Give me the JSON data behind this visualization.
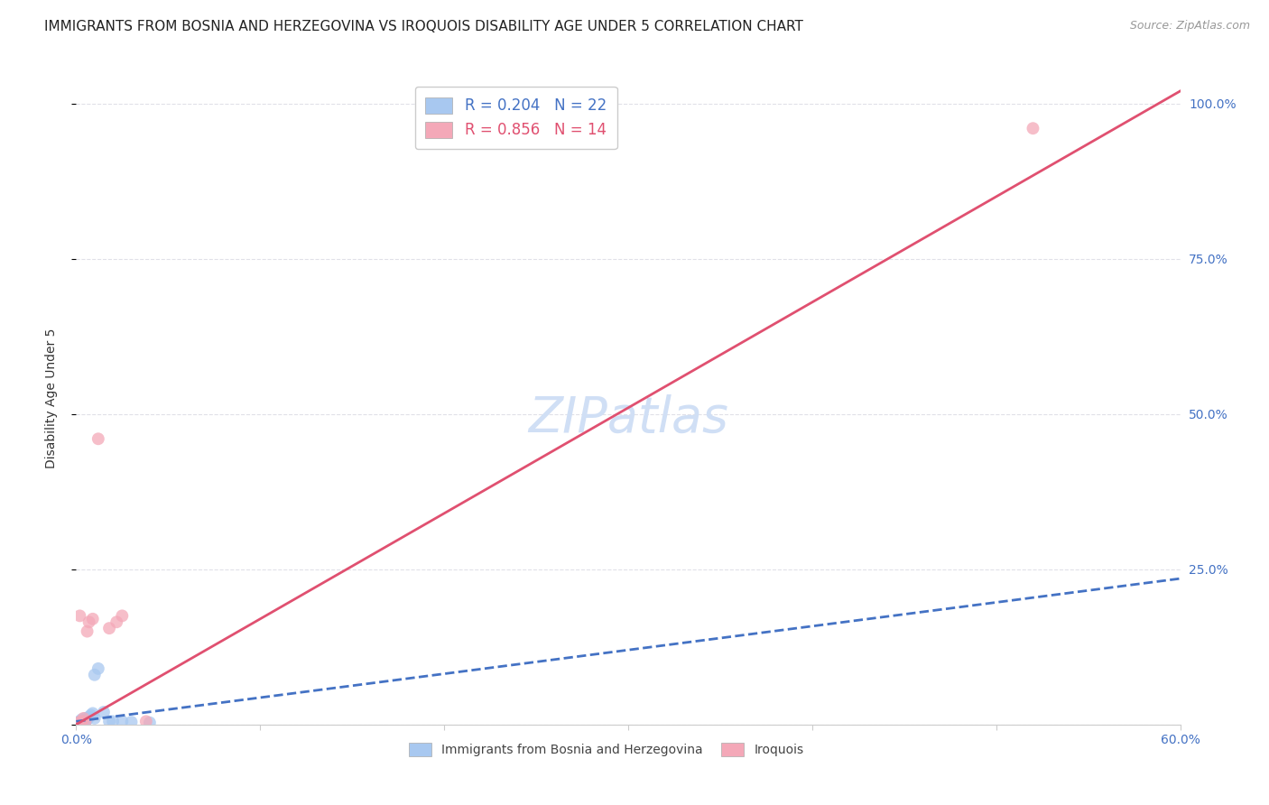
{
  "title": "IMMIGRANTS FROM BOSNIA AND HERZEGOVINA VS IROQUOIS DISABILITY AGE UNDER 5 CORRELATION CHART",
  "source": "Source: ZipAtlas.com",
  "ylabel": "Disability Age Under 5",
  "xlim": [
    0.0,
    0.6
  ],
  "ylim": [
    0.0,
    1.05
  ],
  "xticks": [
    0.0,
    0.1,
    0.2,
    0.3,
    0.4,
    0.5,
    0.6
  ],
  "xticklabels": [
    "0.0%",
    "",
    "",
    "",
    "",
    "",
    "60.0%"
  ],
  "yticks": [
    0.0,
    0.25,
    0.5,
    0.75,
    1.0
  ],
  "yticklabels_right": [
    "",
    "25.0%",
    "50.0%",
    "75.0%",
    "100.0%"
  ],
  "watermark": "ZIPatlas",
  "legend1_label": "R = 0.204   N = 22",
  "legend2_label": "R = 0.856   N = 14",
  "legend1_color": "#a8c8f0",
  "legend2_color": "#f4a8b8",
  "bosnia_scatter_x": [
    0.001,
    0.002,
    0.002,
    0.003,
    0.003,
    0.004,
    0.004,
    0.005,
    0.005,
    0.006,
    0.007,
    0.008,
    0.009,
    0.01,
    0.01,
    0.012,
    0.015,
    0.018,
    0.02,
    0.025,
    0.03,
    0.04
  ],
  "bosnia_scatter_y": [
    0.003,
    0.003,
    0.005,
    0.004,
    0.008,
    0.003,
    0.006,
    0.005,
    0.01,
    0.008,
    0.012,
    0.015,
    0.018,
    0.01,
    0.08,
    0.09,
    0.02,
    0.005,
    0.005,
    0.005,
    0.004,
    0.003
  ],
  "iroquois_scatter_x": [
    0.001,
    0.002,
    0.003,
    0.004,
    0.005,
    0.006,
    0.007,
    0.009,
    0.012,
    0.018,
    0.022,
    0.025,
    0.038,
    0.52
  ],
  "iroquois_scatter_y": [
    0.003,
    0.175,
    0.005,
    0.01,
    0.005,
    0.15,
    0.165,
    0.17,
    0.46,
    0.155,
    0.165,
    0.175,
    0.005,
    0.96
  ],
  "bosnia_line_x": [
    0.0,
    0.6
  ],
  "bosnia_line_y": [
    0.005,
    0.235
  ],
  "iroquois_line_x": [
    0.0,
    0.6
  ],
  "iroquois_line_y": [
    0.0,
    1.02
  ],
  "scatter_size": 100,
  "bosnia_color": "#a8c8f0",
  "iroquois_color": "#f4a8b8",
  "bosnia_line_color": "#4472c4",
  "iroquois_line_color": "#e05070",
  "grid_color": "#e0e0e8",
  "background_color": "#ffffff",
  "title_fontsize": 11,
  "axis_label_fontsize": 10,
  "tick_fontsize": 10,
  "tick_color": "#4472c4",
  "legend_fontsize": 12,
  "watermark_fontsize": 40,
  "watermark_color": "#d0dff5",
  "source_fontsize": 9
}
